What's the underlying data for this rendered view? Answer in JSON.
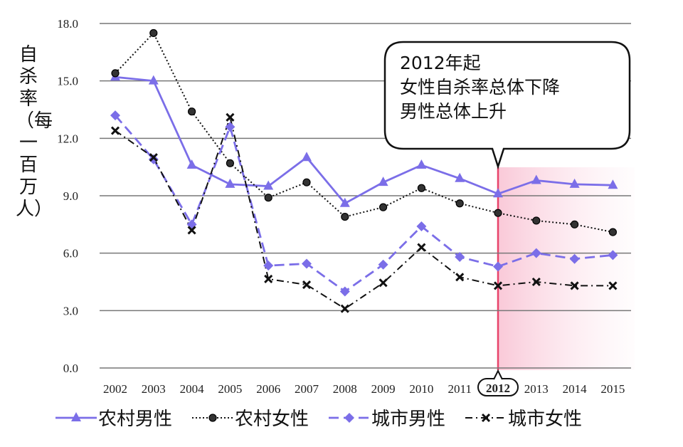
{
  "chart_data": {
    "type": "line",
    "ylabel": "自杀率（每一百万人）",
    "ylim": [
      0,
      18
    ],
    "yticks": [
      "0.0",
      "3.0",
      "6.0",
      "9.0",
      "12.0",
      "15.0",
      "18.0"
    ],
    "grid": true,
    "legend_position": "bottom",
    "categories": [
      "2002",
      "2003",
      "2004",
      "2005",
      "2006",
      "2007",
      "2008",
      "2009",
      "2010",
      "2011",
      "2012",
      "2013",
      "2014",
      "2015"
    ],
    "highlight_category": "2012",
    "series": [
      {
        "name": "农村男性",
        "color": "#7b6ee8",
        "style": "solid",
        "marker": "triangle",
        "values": [
          15.2,
          15.0,
          10.6,
          9.6,
          9.5,
          11.0,
          8.6,
          9.7,
          10.6,
          9.9,
          9.1,
          9.8,
          9.6,
          9.55
        ]
      },
      {
        "name": "农村女性",
        "color": "#111111",
        "style": "dotted",
        "marker": "circle",
        "values": [
          15.4,
          17.5,
          13.4,
          10.7,
          8.9,
          9.7,
          7.9,
          8.4,
          9.4,
          8.6,
          8.1,
          7.7,
          7.5,
          7.1
        ]
      },
      {
        "name": "城市男性",
        "color": "#7b6ee8",
        "style": "dashed",
        "marker": "diamond",
        "values": [
          13.2,
          10.9,
          7.5,
          12.6,
          5.35,
          5.45,
          4.0,
          5.4,
          7.4,
          5.8,
          5.3,
          6.0,
          5.7,
          5.9
        ]
      },
      {
        "name": "城市女性",
        "color": "#111111",
        "style": "dashdot",
        "marker": "x",
        "values": [
          12.4,
          11.0,
          7.2,
          13.1,
          4.65,
          4.35,
          3.1,
          4.45,
          6.3,
          4.75,
          4.3,
          4.5,
          4.3,
          4.3
        ]
      }
    ],
    "annotation": {
      "lines": [
        "2012年起",
        "女性自杀率总体下降",
        "男性总体上升"
      ],
      "highlight_color": "#e8436a"
    }
  }
}
